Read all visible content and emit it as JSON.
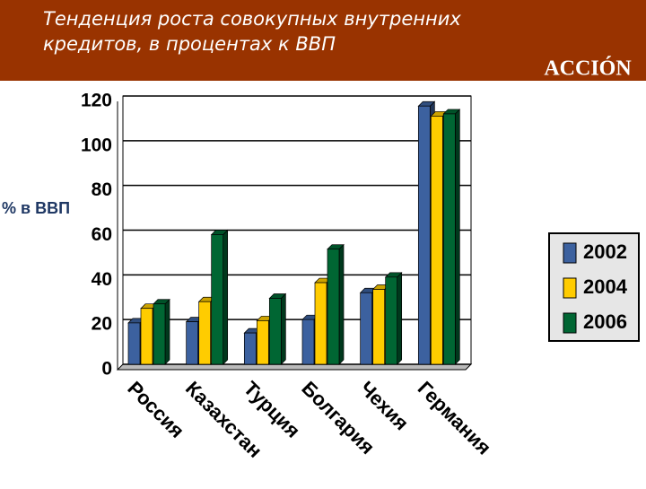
{
  "header": {
    "title_line1": "Тенденция роста совокупных внутренних",
    "title_line2": "кредитов, в процентах к ВВП",
    "logo": "ACCIÓN"
  },
  "chart_data": {
    "type": "bar",
    "ylabel": "% в ВВП",
    "categories": [
      "Россия",
      "Казахстан",
      "Турция",
      "Болгария",
      "Чехия",
      "Германия"
    ],
    "series": [
      {
        "name": "2002",
        "color": "#3c619f",
        "values": [
          18.5,
          19,
          14,
          20,
          32,
          115.5
        ]
      },
      {
        "name": "2004",
        "color": "#ffcc00",
        "values": [
          25,
          28,
          19.5,
          36.5,
          33.5,
          111
        ]
      },
      {
        "name": "2006",
        "color": "#006633",
        "values": [
          27,
          58,
          29.5,
          51.5,
          39,
          112
        ]
      }
    ],
    "ylim": [
      0,
      120
    ],
    "yticks": [
      0,
      20,
      40,
      60,
      80,
      100,
      120
    ],
    "grid": true,
    "legend": "right"
  }
}
